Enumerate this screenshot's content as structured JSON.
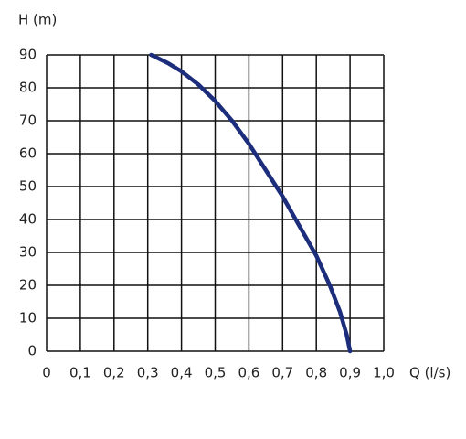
{
  "chart_data": {
    "type": "line",
    "ylabel": "H (m)",
    "xlabel": "Q (l/s)",
    "series": [
      {
        "color": "#1c2d7c",
        "x": [
          0.31,
          0.36,
          0.4,
          0.45,
          0.5,
          0.55,
          0.6,
          0.65,
          0.7,
          0.75,
          0.8,
          0.84,
          0.87,
          0.89,
          0.9
        ],
        "values": [
          90,
          87.5,
          85,
          81,
          76,
          70,
          63,
          55,
          47,
          38,
          29,
          20,
          12,
          5,
          0
        ]
      }
    ],
    "xlim": [
      0,
      1.0
    ],
    "ylim": [
      0,
      90
    ],
    "xticks": [
      0,
      {
        "value": 0.1,
        "label": "0,1"
      },
      {
        "value": 0.2,
        "label": "0,2"
      },
      {
        "value": 0.3,
        "label": "0,3"
      },
      {
        "value": 0.4,
        "label": "0,4"
      },
      {
        "value": 0.5,
        "label": "0,5"
      },
      {
        "value": 0.6,
        "label": "0,6"
      },
      {
        "value": 0.7,
        "label": "0,7"
      },
      {
        "value": 0.8,
        "label": "0,8"
      },
      {
        "value": 0.9,
        "label": "0,9"
      },
      {
        "value": 1.0,
        "label": "1,0"
      }
    ],
    "yticks": [
      0,
      10,
      20,
      30,
      40,
      50,
      60,
      70,
      80,
      90
    ],
    "grid": true
  }
}
